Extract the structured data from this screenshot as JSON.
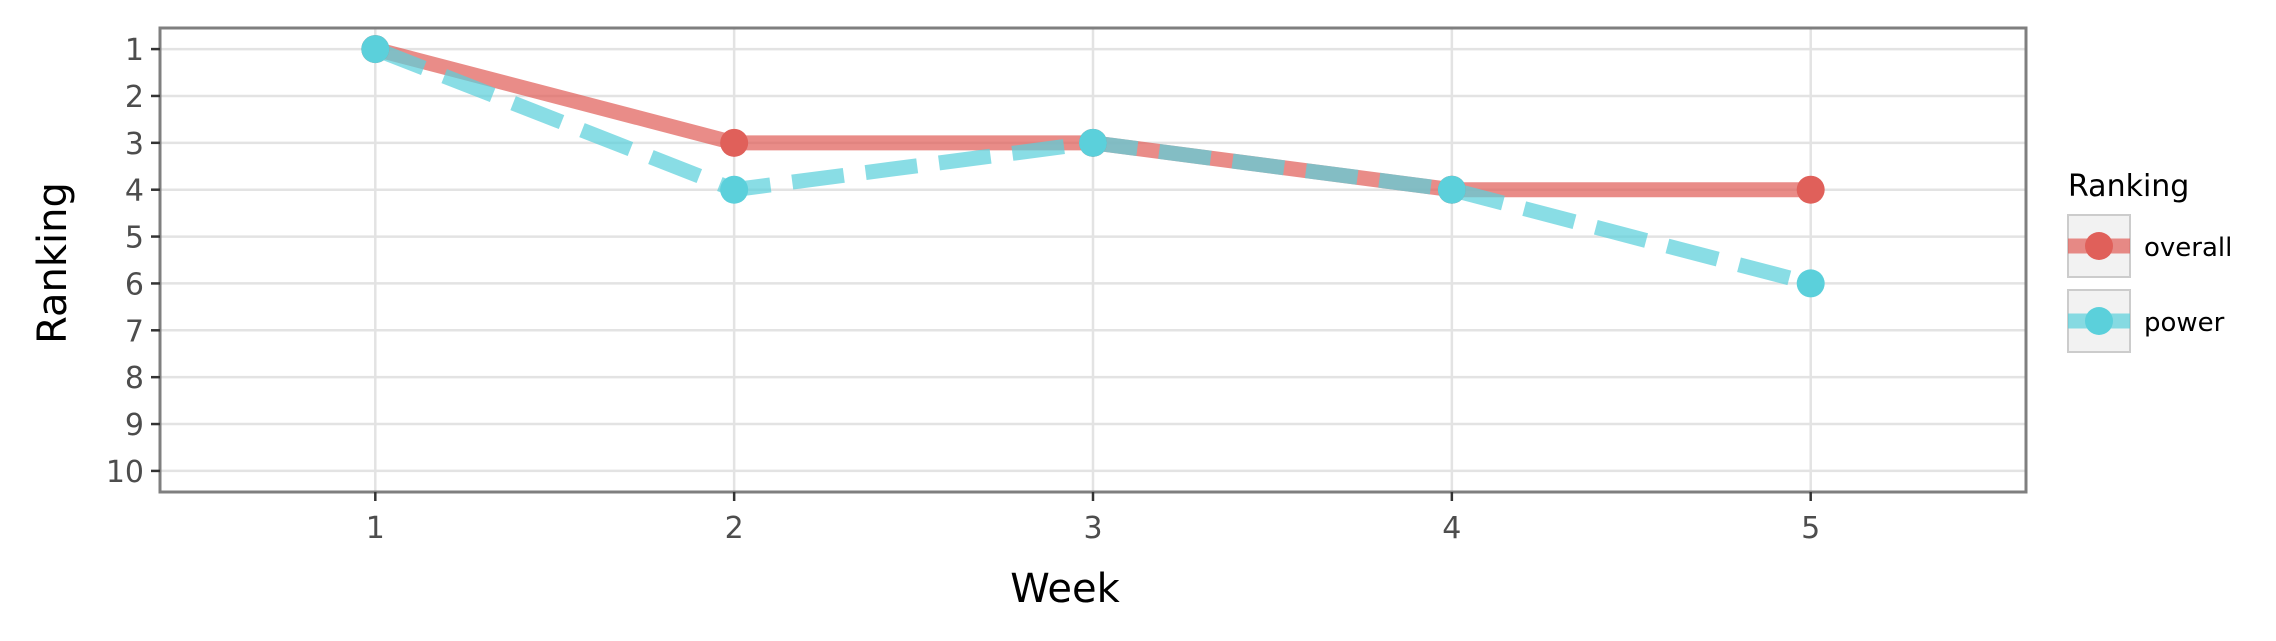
{
  "chart_data": {
    "type": "line",
    "xlabel": "Week",
    "ylabel": "Ranking",
    "x": [
      1,
      2,
      3,
      4,
      5
    ],
    "xlim": [
      0.4,
      5.6
    ],
    "ylim": [
      10.45,
      0.55
    ],
    "y_reversed": true,
    "xticks": [
      "1",
      "2",
      "3",
      "4",
      "5"
    ],
    "yticks": [
      "1",
      "2",
      "3",
      "4",
      "5",
      "6",
      "7",
      "8",
      "9",
      "10"
    ],
    "grid": true,
    "legend": {
      "title": "Ranking",
      "placement": "right"
    },
    "series": [
      {
        "name": "overall",
        "values": [
          1,
          3,
          3,
          4,
          4
        ],
        "color": "#e0605a",
        "line_style": "solid"
      },
      {
        "name": "power",
        "values": [
          1,
          4,
          3,
          4,
          6
        ],
        "color": "#5bd0db",
        "line_style": "dashed"
      }
    ]
  }
}
